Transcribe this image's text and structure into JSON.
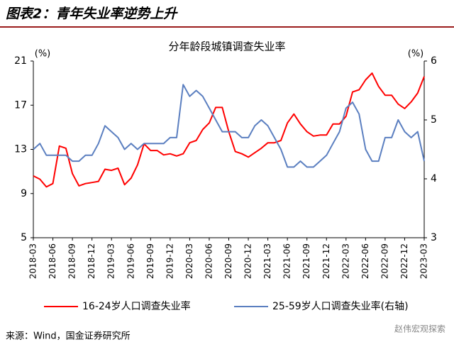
{
  "header": {
    "title": "图表2：青年失业率逆势上升"
  },
  "chart_data": {
    "type": "line",
    "title": "分年龄段城镇调查失业率",
    "y_label": "(%)",
    "y2_label": "(%)",
    "categories": [
      "2018-03",
      null,
      null,
      "2018-06",
      null,
      null,
      "2018-09",
      null,
      null,
      "2018-12",
      null,
      null,
      "2019-03",
      null,
      null,
      "2019-06",
      null,
      null,
      "2019-09",
      null,
      null,
      "2019-12",
      null,
      null,
      "2020-03",
      null,
      null,
      "2020-06",
      null,
      null,
      "2020-09",
      null,
      null,
      "2020-12",
      null,
      null,
      "2021-03",
      null,
      null,
      "2021-06",
      null,
      null,
      "2021-09",
      null,
      null,
      "2021-12",
      null,
      null,
      "2022-03",
      null,
      null,
      "2022-06",
      null,
      null,
      "2022-09",
      null,
      null,
      "2022-12",
      null,
      null,
      "2023-03"
    ],
    "series": [
      {
        "name": "16-24岁人口调查失业率",
        "color": "#ff0000",
        "values": [
          10.6,
          10.3,
          9.6,
          9.9,
          13.3,
          13.1,
          10.8,
          9.7,
          9.9,
          10.0,
          10.1,
          11.2,
          11.1,
          11.3,
          9.8,
          10.4,
          11.6,
          13.5,
          12.9,
          12.9,
          12.5,
          12.6,
          12.4,
          12.6,
          13.6,
          13.8,
          14.8,
          15.4,
          16.8,
          16.8,
          14.6,
          12.8,
          12.6,
          12.3,
          12.7,
          13.1,
          13.6,
          13.6,
          13.8,
          15.4,
          16.2,
          15.3,
          14.6,
          14.2,
          14.3,
          14.3,
          15.3,
          15.3,
          16.0,
          18.2,
          18.4,
          19.3,
          19.9,
          18.7,
          17.9,
          17.9,
          17.1,
          16.7,
          17.3,
          18.1,
          19.6
        ]
      },
      {
        "name": "25-59岁人口调查失业率(右轴)",
        "color": "#5b7fc0",
        "axis": "y2",
        "values": [
          4.5,
          4.6,
          4.4,
          4.4,
          4.4,
          4.4,
          4.3,
          4.3,
          4.4,
          4.4,
          4.6,
          4.9,
          4.8,
          4.7,
          4.5,
          4.6,
          4.5,
          4.6,
          4.6,
          4.6,
          4.6,
          4.7,
          4.7,
          5.6,
          5.4,
          5.5,
          5.4,
          5.2,
          5.0,
          4.8,
          4.8,
          4.8,
          4.7,
          4.7,
          4.9,
          5.0,
          4.9,
          4.7,
          4.5,
          4.2,
          4.2,
          4.3,
          4.2,
          4.2,
          4.3,
          4.4,
          4.6,
          4.8,
          5.2,
          5.3,
          5.1,
          4.5,
          4.3,
          4.3,
          4.7,
          4.7,
          5.0,
          4.8,
          4.7,
          4.8,
          4.3
        ]
      }
    ],
    "ylim": [
      5,
      21
    ],
    "yticks": [
      5,
      9,
      13,
      17,
      21
    ],
    "y2lim": [
      3,
      6
    ],
    "y2ticks": [
      3,
      4,
      5,
      6
    ],
    "grid": false
  },
  "footer": {
    "source": "来源：Wind，国金证券研究所",
    "watermark": "赵伟宏观探索"
  }
}
